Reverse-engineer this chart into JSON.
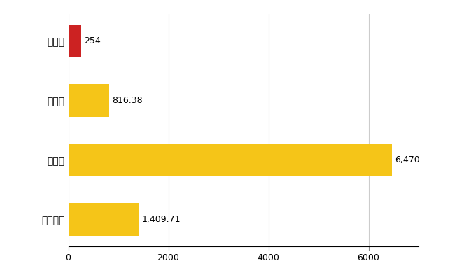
{
  "categories": [
    "六戸町",
    "県平均",
    "県最大",
    "全国平均"
  ],
  "values": [
    254,
    816.38,
    6470,
    1409.71
  ],
  "bar_colors": [
    "#cc2222",
    "#f5c518",
    "#f5c518",
    "#f5c518"
  ],
  "labels": [
    "254",
    "816.38",
    "6,470",
    "1,409.71"
  ],
  "xlim": [
    0,
    7000
  ],
  "xticks": [
    0,
    2000,
    4000,
    6000
  ],
  "background_color": "#ffffff",
  "grid_color": "#cccccc",
  "bar_height": 0.55
}
